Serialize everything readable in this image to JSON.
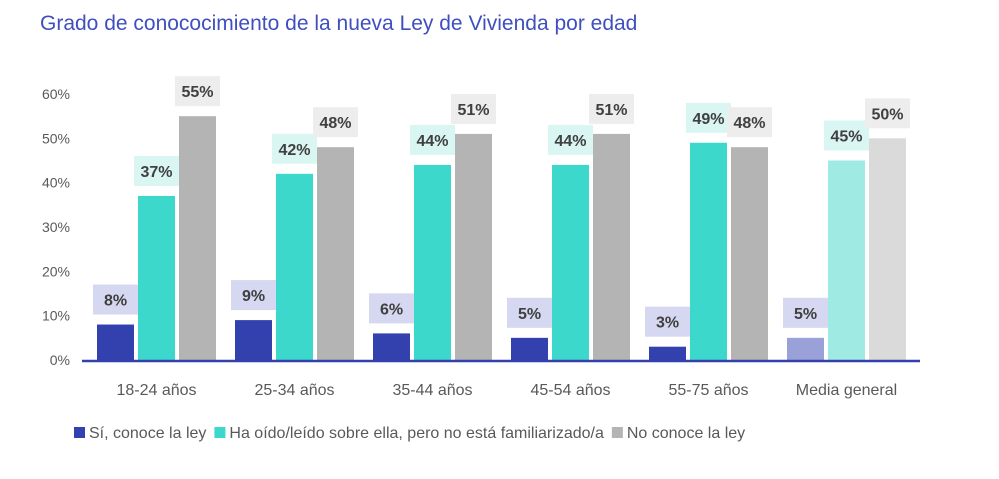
{
  "chart_data": {
    "type": "bar",
    "title": "Grado de conococimiento de la nueva Ley de Vivienda por edad",
    "categories": [
      "18-24 años",
      "25-34 años",
      "35-44 años",
      "45-54 años",
      "55-75 años",
      "Media general"
    ],
    "series": [
      {
        "name": "Sí, conoce la ley",
        "values": [
          8,
          9,
          6,
          5,
          3,
          5
        ],
        "color": "#3341AE",
        "highlight_color": "#9AA0D8",
        "label_bg": "#D6D7F0"
      },
      {
        "name": "Ha oído/leído sobre ella, pero no está familiarizado/a",
        "values": [
          37,
          42,
          44,
          44,
          49,
          45
        ],
        "color": "#3CD8CC",
        "highlight_color": "#A0EAE4",
        "label_bg": "#D9F6F3"
      },
      {
        "name": "No conoce la ley",
        "values": [
          55,
          48,
          51,
          51,
          48,
          50
        ],
        "color": "#B4B4B4",
        "highlight_color": "#DADADA",
        "label_bg": "#EDEDED"
      }
    ],
    "yticks": [
      "0%",
      "10%",
      "20%",
      "30%",
      "40%",
      "50%",
      "60%"
    ],
    "ylim": [
      0,
      60
    ],
    "unit": "%",
    "grid": false,
    "legend": "bottom",
    "axis_color": "#3341AE"
  }
}
